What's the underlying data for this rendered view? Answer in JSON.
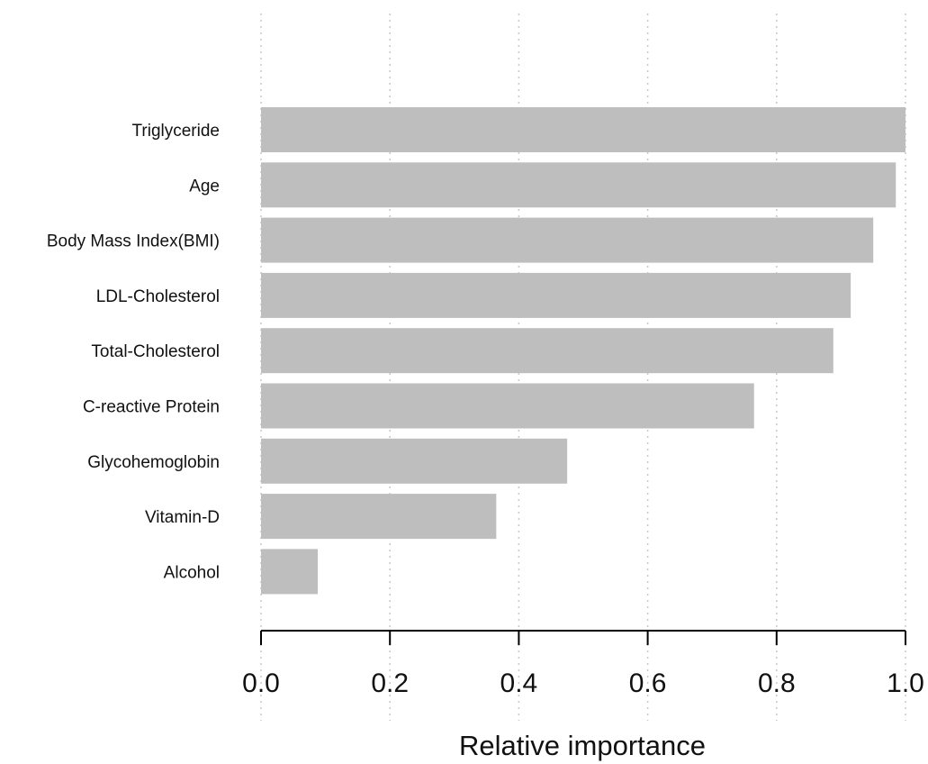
{
  "chart_data": {
    "type": "bar",
    "orientation": "horizontal",
    "categories": [
      "Triglyceride",
      "Age",
      "Body Mass Index(BMI)",
      "LDL-Cholesterol",
      "Total-Cholesterol",
      "C-reactive Protein",
      "Glycohemoglobin",
      "Vitamin-D",
      "Alcohol"
    ],
    "values": [
      1.0,
      0.985,
      0.95,
      0.915,
      0.888,
      0.765,
      0.475,
      0.365,
      0.088
    ],
    "xlabel": "Relative importance",
    "ylabel": "",
    "xlim": [
      0,
      1
    ],
    "xticks": [
      0,
      0.2,
      0.4,
      0.6,
      0.8,
      1.0
    ],
    "xtick_labels": [
      "0.0",
      "0.2",
      "0.4",
      "0.6",
      "0.8",
      "1.0"
    ],
    "grid": "vertical dotted",
    "bar_color": "#bebebe"
  }
}
